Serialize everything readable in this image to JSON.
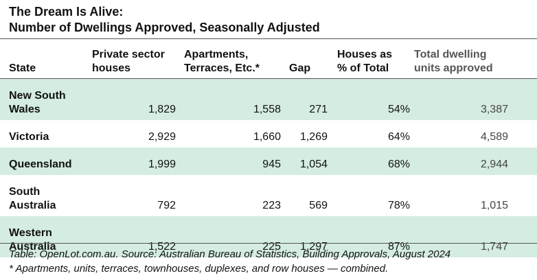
{
  "title_line1": "The Dream Is Alive:",
  "title_line2": "Number of Dwellings Approved, Seasonally Adjusted",
  "chart_data": {
    "type": "table",
    "title": "The Dream Is Alive: Number of Dwellings Approved, Seasonally Adjusted",
    "columns": [
      "State",
      "Private sector houses",
      "Apartments, Terraces, Etc.*",
      "Gap",
      "Houses as % of Total",
      "Total dwelling units approved"
    ],
    "rows": [
      {
        "state": "New South Wales",
        "private": "1,829",
        "apartments": "1,558",
        "gap": "271",
        "pct": "54%",
        "total": "3,387"
      },
      {
        "state": "Victoria",
        "private": "2,929",
        "apartments": "1,660",
        "gap": "1,269",
        "pct": "64%",
        "total": "4,589"
      },
      {
        "state": "Queensland",
        "private": "1,999",
        "apartments": "945",
        "gap": "1,054",
        "pct": "68%",
        "total": "2,944"
      },
      {
        "state": "South Australia",
        "private": "792",
        "apartments": "223",
        "gap": "569",
        "pct": "78%",
        "total": "1,015"
      },
      {
        "state": "Western Australia",
        "private": "1,522",
        "apartments": "225",
        "gap": "1,297",
        "pct": "87%",
        "total": "1,747"
      }
    ]
  },
  "header": {
    "state": "State",
    "private": "Private sector houses",
    "apartments": "Apartments, Terraces, Etc.*",
    "gap": "Gap",
    "pct": "Houses as % of Total",
    "total": "Total dwelling units approved"
  },
  "colors": {
    "shaded_row": "#d4ece1",
    "rule": "#555555",
    "muted_text": "#555555"
  },
  "footer": {
    "source": "Table: OpenLot.com.au. Source: Australian Bureau of Statistics, Building Approvals, August 2024",
    "note": "* Apartments, units, terraces, townhouses, duplexes, and row houses — combined."
  }
}
